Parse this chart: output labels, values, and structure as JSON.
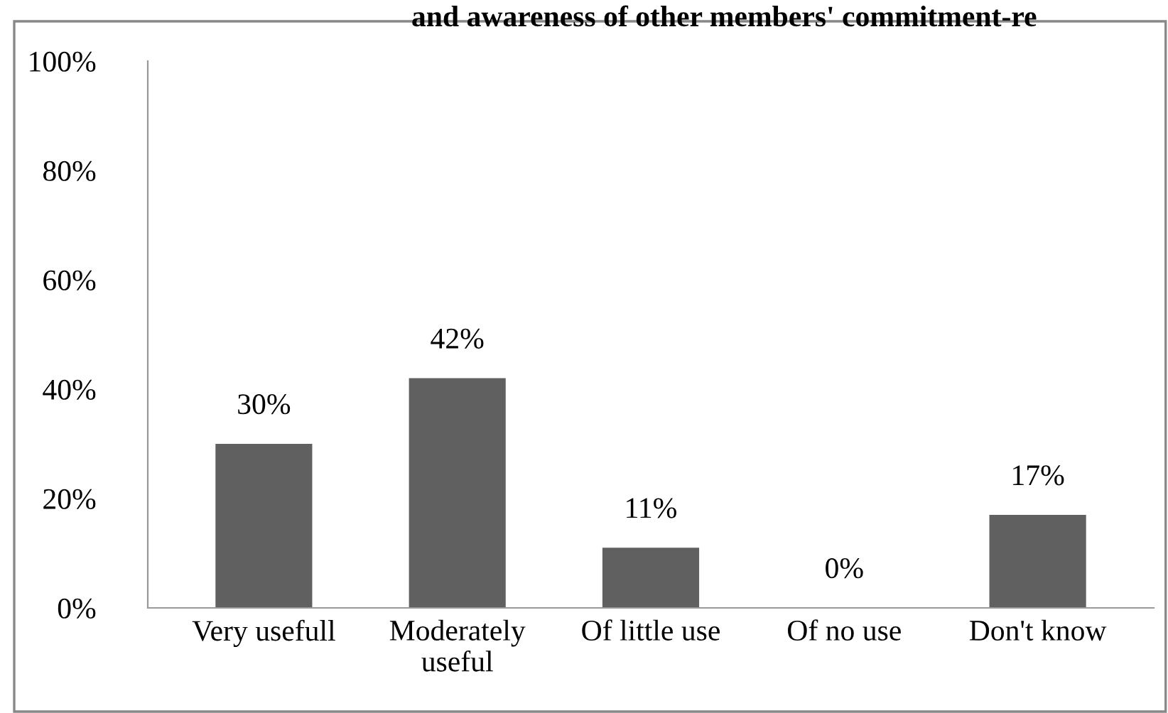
{
  "chart_data": {
    "type": "bar",
    "title": "and awareness of other members' commitment-re",
    "categories": [
      "Very usefull",
      "Moderately\nuseful",
      "Of little use",
      "Of no use",
      "Don't know"
    ],
    "values": [
      30,
      42,
      11,
      0,
      17
    ],
    "color": "#606060",
    "value_labels": [
      "30%",
      "42%",
      "11%",
      "0%",
      "17%"
    ],
    "ylim": [
      0,
      100
    ],
    "yticks": [
      {
        "value": 0,
        "label": "0%"
      },
      {
        "value": 20,
        "label": "20%"
      },
      {
        "value": 40,
        "label": "40%"
      },
      {
        "value": 60,
        "label": "60%"
      },
      {
        "value": 80,
        "label": "80%"
      },
      {
        "value": 100,
        "label": "100%"
      }
    ],
    "grid": false,
    "legend": false
  }
}
